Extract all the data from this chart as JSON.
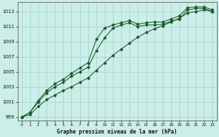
{
  "title": "Graphe pression niveau de la mer (hPa)",
  "bg_color": "#cceee8",
  "grid_color": "#aad8d0",
  "line_color": "#1a5c2a",
  "x_labels": [
    "0",
    "1",
    "2",
    "3",
    "4",
    "5",
    "6",
    "7",
    "8",
    "9",
    "10",
    "11",
    "12",
    "13",
    "14",
    "15",
    "16",
    "17",
    "18",
    "19",
    "20",
    "21",
    "22",
    "23"
  ],
  "ylim": [
    998.5,
    1014.2
  ],
  "xlim": [
    -0.5,
    23.5
  ],
  "yticks": [
    999,
    1001,
    1003,
    1005,
    1007,
    1009,
    1011,
    1013
  ],
  "line1": [
    999.0,
    999.6,
    1001.2,
    1002.5,
    1003.4,
    1004.0,
    1004.8,
    1005.5,
    1006.2,
    1009.3,
    1010.8,
    1011.2,
    1011.5,
    1011.8,
    1011.3,
    1011.5,
    1011.6,
    1011.6,
    1012.0,
    1012.4,
    1013.5,
    1013.6,
    1013.6,
    1013.2
  ],
  "line2": [
    999.0,
    999.6,
    1001.0,
    1002.2,
    1003.0,
    1003.6,
    1004.4,
    1005.0,
    1005.6,
    1007.8,
    1009.5,
    1010.8,
    1011.2,
    1011.5,
    1011.0,
    1011.2,
    1011.2,
    1011.3,
    1011.7,
    1012.0,
    1013.2,
    1013.4,
    1013.4,
    1013.0
  ],
  "line3": [
    999.0,
    999.3,
    1000.4,
    1001.3,
    1001.9,
    1002.5,
    1003.0,
    1003.6,
    1004.2,
    1005.2,
    1006.2,
    1007.2,
    1008.0,
    1008.8,
    1009.6,
    1010.2,
    1010.7,
    1011.1,
    1011.6,
    1012.1,
    1012.8,
    1013.0,
    1013.2,
    1013.0
  ]
}
